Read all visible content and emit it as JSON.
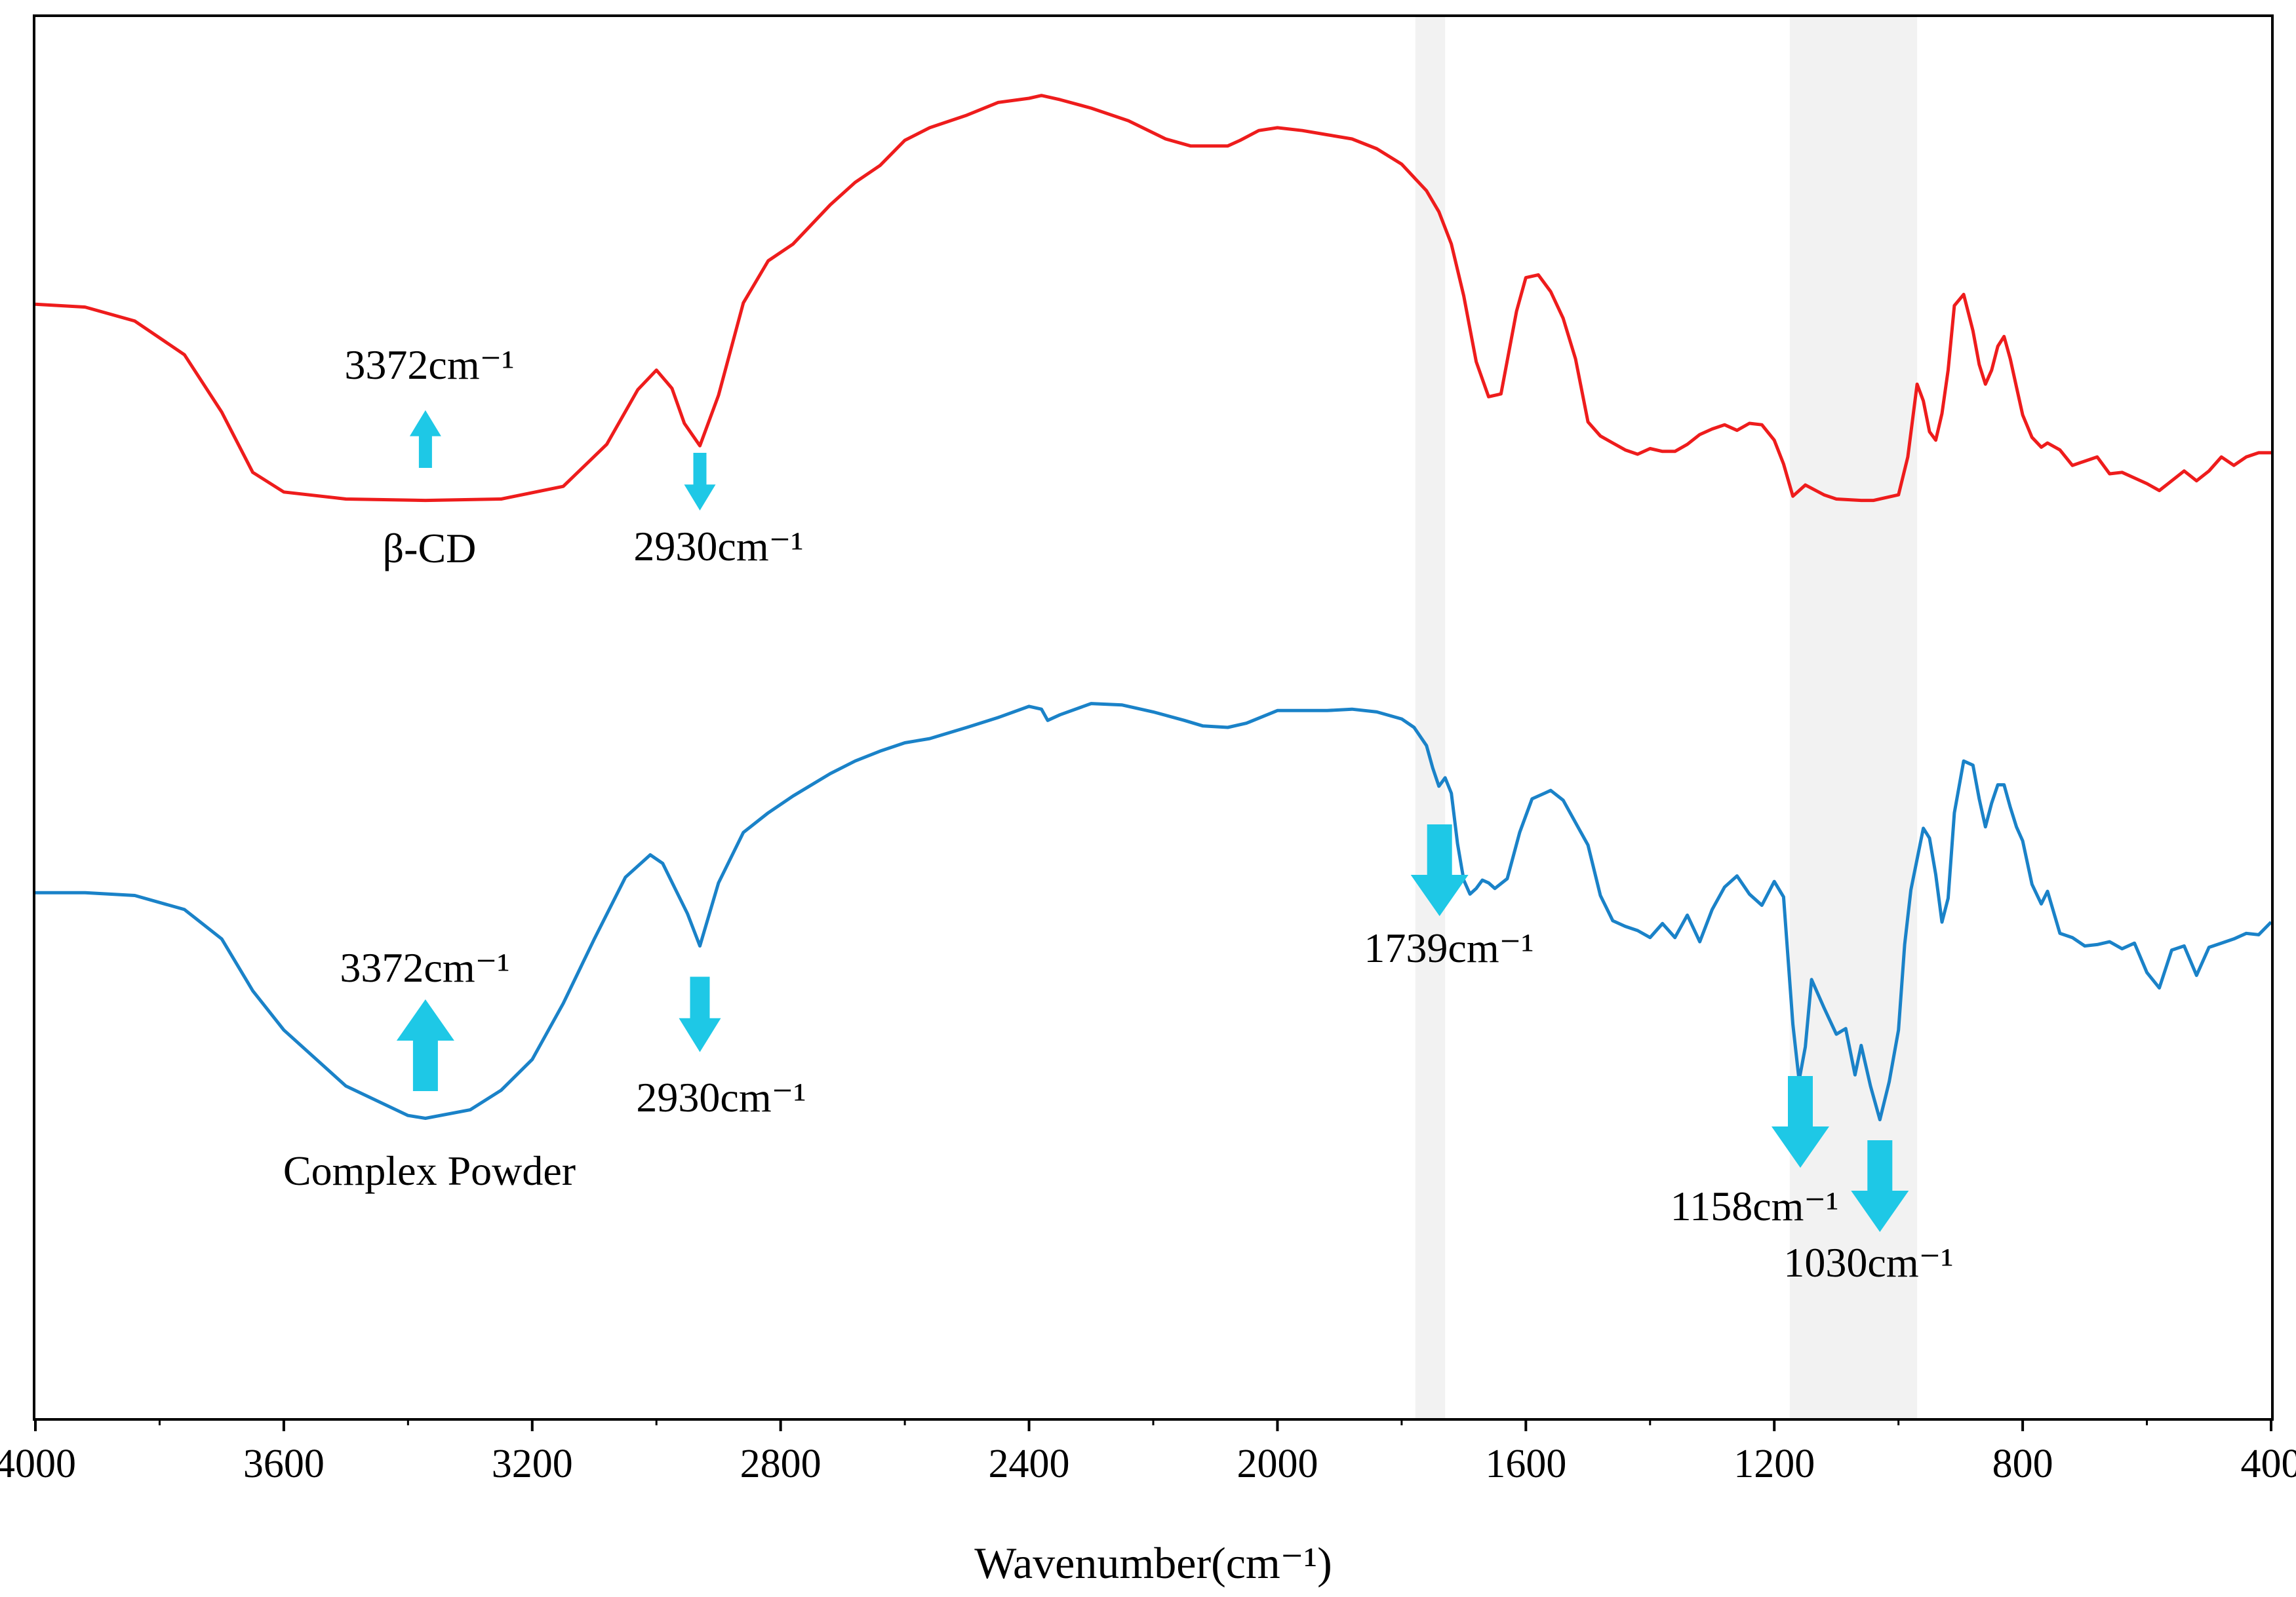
{
  "chart_data": {
    "type": "line",
    "title": "",
    "xlabel": "Wavenumber(cm⁻¹)",
    "ylabel": "",
    "xlim": [
      4000,
      400
    ],
    "x_reversed": true,
    "x_ticks": [
      4000,
      3600,
      3200,
      2800,
      2400,
      2000,
      1600,
      1200,
      800,
      400
    ],
    "x_tick_labels": [
      "4000",
      "3600",
      "3200",
      "2800",
      "2400",
      "2000",
      "1600",
      "1200",
      "800",
      "400"
    ],
    "ylim": [
      0,
      100
    ],
    "y_ticks_shown": false,
    "grid": false,
    "legend": "none",
    "colors": {
      "beta_cd": "#ee1c1c",
      "complex": "#1a82c8",
      "arrow": "#1ec8e6",
      "shade": "#f2f2f2"
    },
    "highlight_bands": [
      {
        "from": 1778,
        "to": 1730
      },
      {
        "from": 1175,
        "to": 970
      }
    ],
    "series": [
      {
        "name": "β-CD",
        "label": "β-CD",
        "color": "#ee1c1c",
        "x": [
          4000,
          3920,
          3840,
          3760,
          3700,
          3650,
          3600,
          3500,
          3372,
          3250,
          3150,
          3080,
          3030,
          3000,
          2975,
          2955,
          2930,
          2900,
          2860,
          2820,
          2780,
          2720,
          2680,
          2640,
          2600,
          2560,
          2500,
          2450,
          2400,
          2380,
          2350,
          2300,
          2240,
          2180,
          2140,
          2100,
          2080,
          2060,
          2030,
          2000,
          1960,
          1920,
          1880,
          1840,
          1800,
          1760,
          1740,
          1720,
          1700,
          1680,
          1660,
          1640,
          1615,
          1600,
          1580,
          1560,
          1540,
          1520,
          1500,
          1480,
          1460,
          1440,
          1420,
          1400,
          1380,
          1360,
          1340,
          1320,
          1300,
          1280,
          1260,
          1240,
          1220,
          1200,
          1185,
          1170,
          1150,
          1120,
          1100,
          1060,
          1040,
          1020,
          1000,
          985,
          970,
          960,
          950,
          940,
          930,
          920,
          910,
          895,
          880,
          870,
          860,
          850,
          840,
          830,
          820,
          810,
          800,
          785,
          770,
          760,
          740,
          720,
          700,
          680,
          660,
          640,
          620,
          600,
          580,
          560,
          540,
          520,
          500,
          480,
          460,
          440,
          420,
          400
        ],
        "values": [
          79.5,
          79.3,
          78.3,
          75.9,
          71.8,
          67.5,
          66.1,
          65.6,
          65.5,
          65.6,
          66.5,
          69.5,
          73.4,
          74.8,
          73.5,
          71.0,
          69.4,
          73.0,
          79.6,
          82.6,
          83.8,
          86.6,
          88.2,
          89.4,
          91.2,
          92.1,
          93.0,
          93.9,
          94.2,
          94.4,
          94.1,
          93.5,
          92.6,
          91.3,
          90.8,
          90.8,
          90.8,
          91.2,
          91.9,
          92.1,
          91.9,
          91.6,
          91.3,
          90.6,
          89.5,
          87.6,
          86.1,
          83.8,
          80.1,
          75.4,
          72.9,
          73.1,
          79.0,
          81.4,
          81.6,
          80.4,
          78.5,
          75.6,
          71.1,
          70.1,
          69.6,
          69.1,
          68.8,
          69.2,
          69.0,
          69.0,
          69.5,
          70.2,
          70.6,
          70.9,
          70.5,
          71.0,
          70.9,
          69.8,
          68.1,
          65.8,
          66.6,
          65.9,
          65.6,
          65.5,
          65.5,
          65.7,
          65.9,
          68.6,
          73.8,
          72.6,
          70.4,
          69.8,
          71.7,
          74.8,
          79.4,
          80.2,
          77.6,
          75.2,
          73.8,
          74.8,
          76.5,
          77.2,
          75.6,
          73.6,
          71.6,
          70.0,
          69.3,
          69.6,
          69.1,
          68.0,
          68.3,
          68.6,
          67.4,
          67.5,
          67.1,
          66.7,
          66.2,
          66.9,
          67.6,
          66.9,
          67.6,
          68.6,
          68.0,
          68.6,
          68.9,
          68.9
        ]
      },
      {
        "name": "Complex Powder",
        "label": "Complex Powder",
        "color": "#1a82c8",
        "x": [
          4000,
          3920,
          3840,
          3760,
          3700,
          3650,
          3600,
          3500,
          3400,
          3372,
          3300,
          3250,
          3200,
          3150,
          3100,
          3050,
          3010,
          2990,
          2970,
          2950,
          2930,
          2900,
          2860,
          2820,
          2780,
          2720,
          2680,
          2640,
          2600,
          2560,
          2500,
          2450,
          2400,
          2380,
          2370,
          2350,
          2300,
          2250,
          2200,
          2150,
          2120,
          2080,
          2050,
          2000,
          1960,
          1920,
          1880,
          1840,
          1800,
          1780,
          1760,
          1750,
          1740,
          1730,
          1720,
          1710,
          1700,
          1690,
          1680,
          1670,
          1660,
          1650,
          1630,
          1610,
          1590,
          1570,
          1560,
          1540,
          1520,
          1500,
          1480,
          1460,
          1440,
          1420,
          1400,
          1380,
          1360,
          1340,
          1320,
          1300,
          1280,
          1260,
          1240,
          1220,
          1200,
          1185,
          1170,
          1160,
          1150,
          1140,
          1120,
          1100,
          1085,
          1070,
          1060,
          1045,
          1030,
          1015,
          1000,
          990,
          980,
          960,
          950,
          940,
          930,
          920,
          910,
          895,
          880,
          870,
          860,
          850,
          840,
          830,
          820,
          810,
          800,
          785,
          770,
          760,
          740,
          720,
          700,
          680,
          660,
          640,
          620,
          600,
          580,
          560,
          540,
          520,
          500,
          480,
          460,
          440,
          420,
          400
        ],
        "values": [
          37.5,
          37.5,
          37.3,
          36.3,
          34.2,
          30.5,
          27.7,
          23.7,
          21.6,
          21.4,
          22.0,
          23.4,
          25.6,
          29.6,
          34.2,
          38.6,
          40.2,
          39.6,
          37.8,
          36.0,
          33.7,
          38.2,
          41.8,
          43.2,
          44.4,
          46.0,
          46.9,
          47.6,
          48.2,
          48.5,
          49.3,
          50.0,
          50.8,
          50.6,
          49.8,
          50.2,
          51.0,
          50.9,
          50.4,
          49.8,
          49.4,
          49.3,
          49.6,
          50.5,
          50.5,
          50.5,
          50.6,
          50.4,
          49.9,
          49.3,
          48.0,
          46.4,
          45.1,
          45.7,
          44.6,
          41.0,
          38.4,
          37.4,
          37.8,
          38.4,
          38.2,
          37.8,
          38.5,
          41.8,
          44.2,
          44.6,
          44.8,
          44.1,
          42.5,
          40.9,
          37.3,
          35.5,
          35.1,
          34.8,
          34.3,
          35.3,
          34.3,
          35.9,
          34.0,
          36.3,
          37.9,
          38.7,
          37.4,
          36.6,
          38.3,
          37.2,
          28.1,
          24.1,
          26.5,
          31.3,
          29.3,
          27.4,
          27.8,
          24.5,
          26.6,
          23.7,
          21.3,
          24.0,
          27.7,
          33.8,
          37.7,
          42.1,
          41.4,
          38.8,
          35.4,
          37.1,
          43.2,
          46.9,
          46.6,
          44.2,
          42.2,
          43.9,
          45.2,
          45.2,
          43.6,
          42.2,
          41.2,
          38.1,
          36.7,
          37.6,
          34.6,
          34.3,
          33.7,
          33.8,
          34.0,
          33.5,
          33.9,
          31.8,
          30.7,
          33.4,
          33.7,
          31.6,
          33.6,
          33.9,
          34.2,
          34.6,
          34.5,
          35.4
        ]
      }
    ],
    "annotations": [
      {
        "text": "3372cm⁻¹",
        "x": 3372,
        "series": "β-CD",
        "arrow": "up"
      },
      {
        "text": "2930cm⁻¹",
        "x": 2930,
        "series": "β-CD",
        "arrow": "down"
      },
      {
        "text": "3372cm⁻¹",
        "x": 3372,
        "series": "Complex Powder",
        "arrow": "up"
      },
      {
        "text": "2930cm⁻¹",
        "x": 2930,
        "series": "Complex Powder",
        "arrow": "down"
      },
      {
        "text": "1739cm⁻¹",
        "x": 1739,
        "series": "Complex Powder",
        "arrow": "down"
      },
      {
        "text": "1158cm⁻¹",
        "x": 1158,
        "series": "Complex Powder",
        "arrow": "down"
      },
      {
        "text": "1030cm⁻¹",
        "x": 1030,
        "series": "Complex Powder",
        "arrow": "down"
      }
    ]
  }
}
